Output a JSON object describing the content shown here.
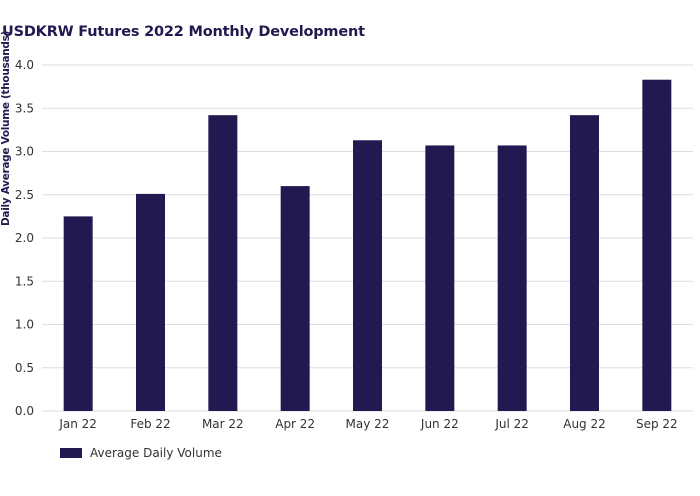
{
  "colors": {
    "bar": "#211a51",
    "grid": "#dddddd",
    "text": "#333333",
    "title": "#1f1a4f"
  },
  "chart_data": {
    "type": "bar",
    "title": "USDKRW Futures 2022 Monthly Development",
    "xlabel": "",
    "ylabel": "Daily Average Volume (thousands)",
    "categories": [
      "Jan 22",
      "Feb 22",
      "Mar 22",
      "Apr 22",
      "May 22",
      "Jun 22",
      "Jul 22",
      "Aug 22",
      "Sep 22"
    ],
    "series": [
      {
        "name": "Average Daily Volume",
        "values": [
          2.25,
          2.51,
          3.42,
          2.6,
          3.13,
          3.07,
          3.07,
          3.42,
          3.83
        ]
      }
    ],
    "ylim": [
      0,
      4.0
    ],
    "yticks": [
      "0.0",
      "0.5",
      "1.0",
      "1.5",
      "2.0",
      "2.5",
      "3.0",
      "3.5",
      "4.0"
    ],
    "grid": true,
    "legend_position": "bottom-left"
  }
}
